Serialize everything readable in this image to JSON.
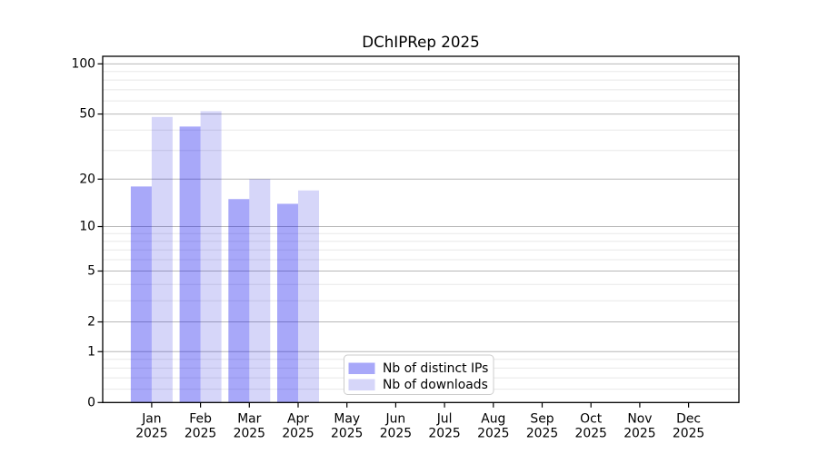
{
  "chart_data": {
    "type": "bar",
    "title": "DChIPRep 2025",
    "categories": [
      "Jan",
      "Feb",
      "Mar",
      "Apr",
      "May",
      "Jun",
      "Jul",
      "Aug",
      "Sep",
      "Oct",
      "Nov",
      "Dec"
    ],
    "category_year": "2025",
    "series": [
      {
        "name": "Nb of distinct IPs",
        "color": "rgba(0,0,238,0.34)",
        "values": [
          18,
          42,
          15,
          14,
          0,
          0,
          0,
          0,
          0,
          0,
          0,
          0
        ]
      },
      {
        "name": "Nb of downloads",
        "color": "rgba(0,0,215,0.16)",
        "values": [
          48,
          52,
          20,
          17,
          0,
          0,
          0,
          0,
          0,
          0,
          0,
          0
        ]
      }
    ],
    "yscale": "log1p",
    "yticks": [
      0,
      1,
      2,
      5,
      10,
      20,
      50,
      100
    ],
    "minor_gridlines": [
      0.2,
      0.4,
      0.6,
      0.8,
      3,
      4,
      6,
      7,
      8,
      9,
      30,
      40,
      60,
      70,
      80,
      90
    ],
    "ylim": [
      0,
      110
    ],
    "grid": "on",
    "legend_position": "lower center"
  },
  "colors": {
    "background": "#ffffff",
    "major_grid": "#b8b8b8",
    "minor_grid": "#e8e8e8",
    "spine": "#000000",
    "text": "#000000",
    "legend_border": "#cccccc",
    "legend_background": "#ffffff"
  }
}
